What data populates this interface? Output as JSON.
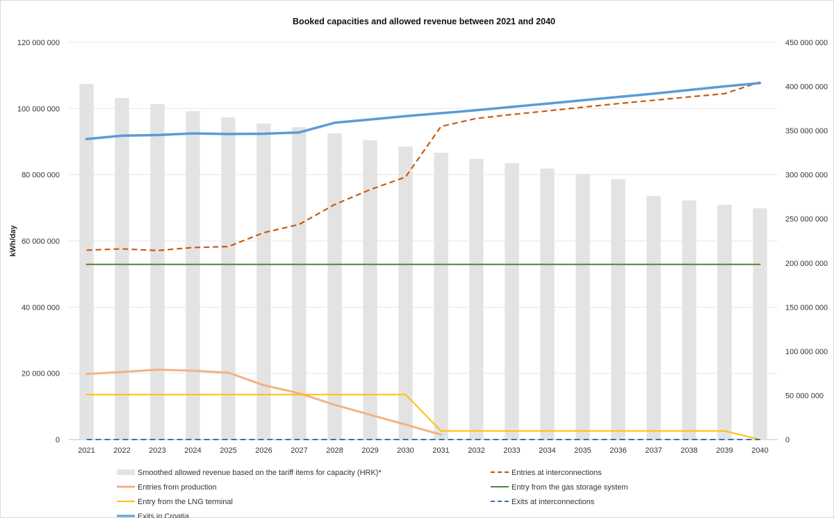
{
  "chart_data": {
    "type": "bar+line",
    "title": "Booked capacities and allowed revenue between 2021 and 2040",
    "ylabel": "kWh/day",
    "ylim": [
      0,
      120000000
    ],
    "y2lim": [
      0,
      450000000
    ],
    "yticks": [
      "0",
      "20 000 000",
      "40 000 000",
      "60 000 000",
      "80 000 000",
      "100 000 000",
      "120 000 000"
    ],
    "y2ticks": [
      "0",
      "50 000 000",
      "100 000 000",
      "150 000 000",
      "200 000 000",
      "250 000 000",
      "300 000 000",
      "350 000 000",
      "400 000 000",
      "450 000 000"
    ],
    "categories": [
      "2021",
      "2022",
      "2023",
      "2024",
      "2025",
      "2026",
      "2027",
      "2028",
      "2029",
      "2030",
      "2031",
      "2032",
      "2033",
      "2034",
      "2035",
      "2036",
      "2037",
      "2038",
      "2039",
      "2040"
    ],
    "grid": true,
    "legend_position": "bottom",
    "bars": {
      "name": "Smoothed allowed revenue based on the tariff items for capacity (HRK)*",
      "axis": "right",
      "color": "#e3e3e3",
      "values": [
        403000000,
        387000000,
        380000000,
        372000000,
        365000000,
        358000000,
        354000000,
        347000000,
        339000000,
        332000000,
        325000000,
        318000000,
        313000000,
        307000000,
        301000000,
        295000000,
        276000000,
        271000000,
        266000000,
        262000000
      ]
    },
    "series": [
      {
        "name": "Entries at interconnections",
        "color": "#c55a11",
        "dash": true,
        "width": 2.2,
        "values": [
          57200000,
          57600000,
          57100000,
          58000000,
          58300000,
          62500000,
          65000000,
          71000000,
          75500000,
          79300000,
          94600000,
          97000000,
          98200000,
          99300000,
          100400000,
          101500000,
          102500000,
          103500000,
          104500000,
          108000000
        ]
      },
      {
        "name": "Entries from production",
        "color": "#f4b183",
        "dash": false,
        "width": 3,
        "values": [
          19800000,
          20400000,
          21100000,
          20800000,
          20200000,
          16400000,
          14000000,
          10500000,
          7500000,
          4500000,
          1500000,
          null,
          null,
          null,
          null,
          null,
          null,
          null,
          null,
          null
        ]
      },
      {
        "name": "Entry from the gas storage system",
        "color": "#548235",
        "dash": false,
        "width": 2,
        "values": [
          52900000,
          52900000,
          52900000,
          52900000,
          52900000,
          52900000,
          52900000,
          52900000,
          52900000,
          52900000,
          52900000,
          52900000,
          52900000,
          52900000,
          52900000,
          52900000,
          52900000,
          52900000,
          52900000,
          52900000
        ]
      },
      {
        "name": "Entry from the LNG terminal",
        "color": "#ffc000",
        "dash": false,
        "width": 2,
        "values": [
          13600000,
          13600000,
          13600000,
          13600000,
          13600000,
          13600000,
          13600000,
          13600000,
          13600000,
          13600000,
          2600000,
          2600000,
          2600000,
          2600000,
          2600000,
          2600000,
          2600000,
          2600000,
          2600000,
          0
        ]
      },
      {
        "name": "Exits at interconnections",
        "color": "#2e75b6",
        "dash": true,
        "width": 2,
        "values": [
          0,
          0,
          0,
          0,
          0,
          0,
          0,
          0,
          0,
          0,
          0,
          0,
          0,
          0,
          0,
          0,
          0,
          0,
          0,
          0
        ]
      },
      {
        "name": "Exits in Croatia",
        "color": "#5b9bd5",
        "dash": false,
        "width": 3.5,
        "values": [
          90800000,
          91800000,
          92000000,
          92500000,
          92300000,
          92400000,
          92800000,
          95700000,
          96700000,
          97700000,
          98600000,
          99500000,
          100500000,
          101500000,
          102500000,
          103500000,
          104500000,
          105600000,
          106700000,
          107700000
        ]
      }
    ]
  }
}
